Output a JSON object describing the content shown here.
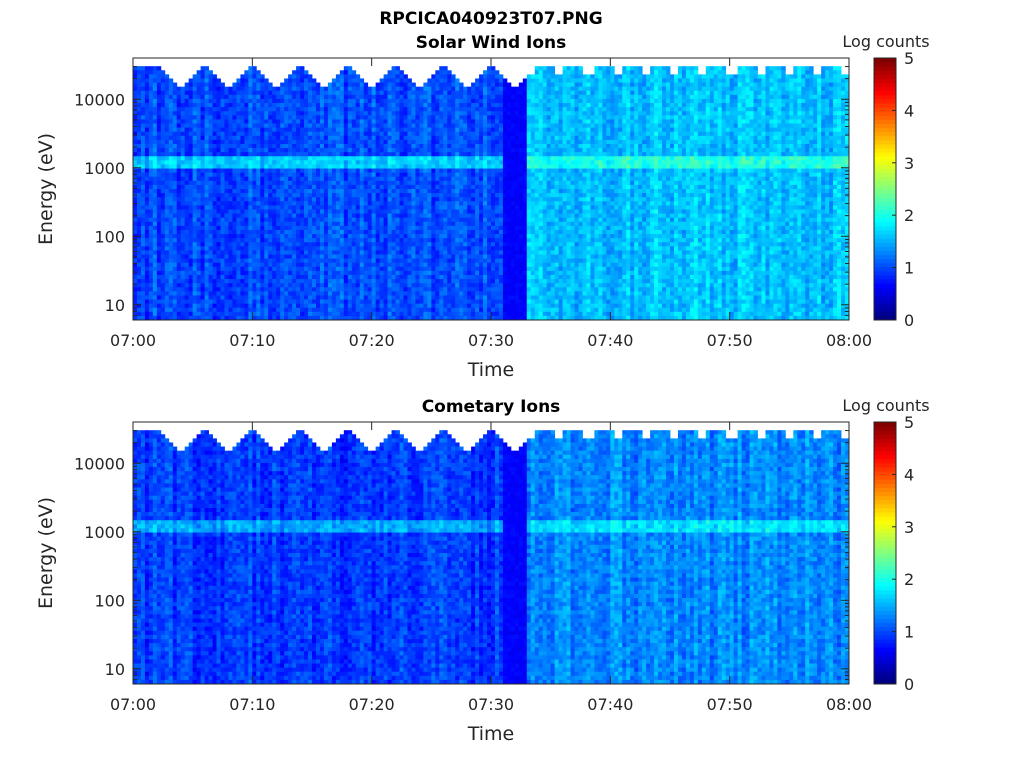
{
  "figure_title": "RPCICA040923T07.PNG",
  "chart_data": [
    {
      "type": "heatmap",
      "title": "Solar Wind Ions",
      "xlabel": "Time",
      "ylabel": "Energy (eV)",
      "x_range": [
        "07:00",
        "08:00"
      ],
      "x_ticks": [
        "07:00",
        "07:10",
        "07:20",
        "07:30",
        "07:40",
        "07:50",
        "08:00"
      ],
      "y_scale": "log",
      "y_range": [
        6,
        40000
      ],
      "y_ticks": [
        "10",
        "100",
        "1000",
        "10000"
      ],
      "colorbar": {
        "label": "Log counts",
        "range": [
          0,
          5
        ],
        "ticks": [
          "0",
          "1",
          "2",
          "3",
          "4",
          "5"
        ],
        "colormap": "jet"
      },
      "regimes": [
        {
          "from": "07:00",
          "to": "07:32",
          "mean_log_counts": 1.0,
          "description": "sweep-shaped upper cutoff"
        },
        {
          "from": "07:33",
          "to": "08:00",
          "mean_log_counts": 1.6
        }
      ],
      "line_peak_energy_eV": 1200,
      "line_peak_log_counts": 2.1,
      "sweep_notch_times": [
        "07:04",
        "07:08",
        "07:12",
        "07:16",
        "07:20",
        "07:24",
        "07:28",
        "07:32"
      ]
    },
    {
      "type": "heatmap",
      "title": "Cometary Ions",
      "xlabel": "Time",
      "ylabel": "Energy (eV)",
      "x_range": [
        "07:00",
        "08:00"
      ],
      "x_ticks": [
        "07:00",
        "07:10",
        "07:20",
        "07:30",
        "07:40",
        "07:50",
        "08:00"
      ],
      "y_scale": "log",
      "y_range": [
        6,
        40000
      ],
      "y_ticks": [
        "10",
        "100",
        "1000",
        "10000"
      ],
      "colorbar": {
        "label": "Log counts",
        "range": [
          0,
          5
        ],
        "ticks": [
          "0",
          "1",
          "2",
          "3",
          "4",
          "5"
        ],
        "colormap": "jet"
      },
      "regimes": [
        {
          "from": "07:00",
          "to": "07:32",
          "mean_log_counts": 0.9
        },
        {
          "from": "07:33",
          "to": "08:00",
          "mean_log_counts": 1.3
        }
      ],
      "line_peak_energy_eV": 1200,
      "line_peak_log_counts": 1.8,
      "sweep_notch_times": [
        "07:04",
        "07:08",
        "07:12",
        "07:16",
        "07:20",
        "07:24",
        "07:28",
        "07:32"
      ]
    }
  ]
}
